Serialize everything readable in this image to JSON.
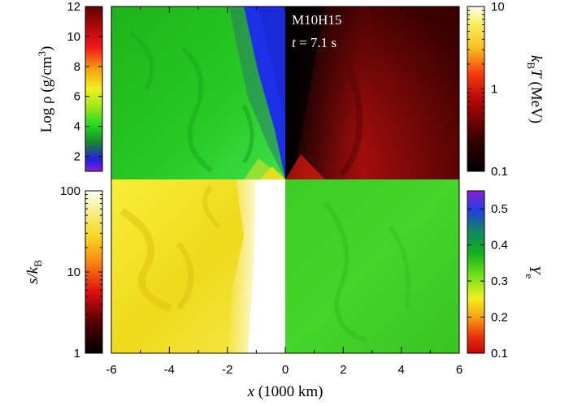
{
  "chart_data": {
    "type": "heatmap",
    "xlabel": "x (1000 km)",
    "xlim": [
      -6,
      6
    ],
    "x_ticks": [
      "-6",
      "-4",
      "-2",
      "0",
      "2",
      "4",
      "6"
    ],
    "annotation": {
      "model": "M10H15",
      "time": "t = 7.1 s"
    },
    "panels": [
      {
        "name": "Log ρ",
        "quadrant": "top-left",
        "colorbar_label": "Log ρ (g/cm³)",
        "colorbar_side": "left",
        "scale": "linear",
        "range": [
          1,
          12
        ],
        "ticks": [
          "2",
          "4",
          "6",
          "8",
          "10",
          "12"
        ]
      },
      {
        "name": "kBT",
        "quadrant": "top-right",
        "colorbar_label": "kBT (MeV)",
        "colorbar_side": "right",
        "scale": "log",
        "range": [
          0.1,
          10
        ],
        "ticks": [
          "0.1",
          "1",
          "10"
        ]
      },
      {
        "name": "s/kB",
        "quadrant": "bottom-left",
        "colorbar_label": "s/kB",
        "colorbar_side": "left",
        "scale": "log",
        "range": [
          1,
          100
        ],
        "ticks": [
          "1",
          "10",
          "100"
        ]
      },
      {
        "name": "Ye",
        "quadrant": "bottom-right",
        "colorbar_label": "Ye",
        "colorbar_side": "right",
        "scale": "linear",
        "range": [
          0.1,
          0.55
        ],
        "ticks": [
          "0.1",
          "0.2",
          "0.3",
          "0.4",
          "0.5"
        ]
      }
    ]
  },
  "labels": {
    "model": "M10H15",
    "t_sym": "t",
    "t_val": " = 7.1 s",
    "xlabel_sym": "x",
    "xlabel_unit": " (1000 km)",
    "rho_log": "Log",
    "rho_sym": "ρ",
    "rho_unit_pre": " (g/cm",
    "rho_unit_exp": "3",
    "rho_unit_post": ")",
    "kt_k": "k",
    "kt_sub": "B",
    "kt_T": "T",
    "kt_unit": " (MeV)",
    "s_s": "s/",
    "s_k": "k",
    "s_sub": "B",
    "ye_Y": "Y",
    "ye_sub": "e"
  },
  "colors": {
    "density_green": "#22c21c",
    "density_blue": "#1a2cf0",
    "temperature_dark": "#2a0000",
    "temperature_red": "#8b0a0a",
    "entropy_yellow": "#f4e61e",
    "entropy_white": "#ffffff",
    "ye_green": "#3fcf28"
  }
}
